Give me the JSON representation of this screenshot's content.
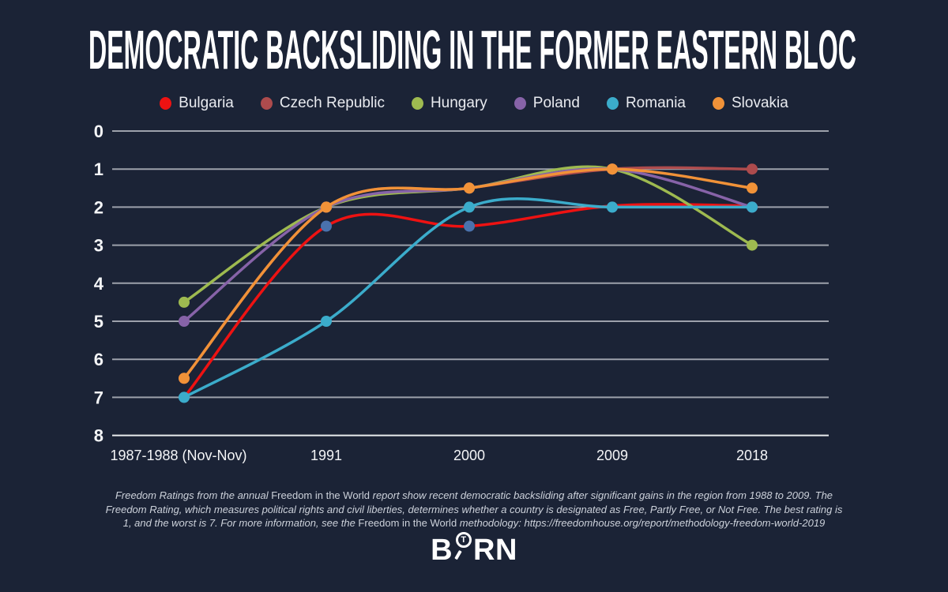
{
  "title": "DEMOCRATIC BACKSLIDING IN THE FORMER EASTERN BLOC",
  "colors": {
    "background": "#1b2336",
    "grid": "#9da1ab",
    "axis_bottom": "#e9ebee",
    "tick_text": "#f4f5f7",
    "legend_text": "#e9ebf0",
    "footer_text": "#ccd1da",
    "title_text": "#ffffff"
  },
  "chart_data": {
    "type": "line",
    "x_categories": [
      "1987-1988 (Nov-Nov)",
      "1991",
      "2000",
      "2009",
      "2018"
    ],
    "y_ticks": [
      0,
      1,
      2,
      3,
      4,
      5,
      6,
      7,
      8
    ],
    "y_axis_inverted": true,
    "y_range_note": "Freedom Rating: 1 best, 7 worst; axis shown 0 (top) to 8 (bottom)",
    "grid": "horizontal",
    "legend_position": "top",
    "series": [
      {
        "name": "Bulgaria",
        "color": "#ee1212",
        "marker_color": "#4a72ad",
        "values": [
          7,
          2.5,
          2.5,
          2,
          2
        ]
      },
      {
        "name": "Czech Republic",
        "color": "#ad4b4d",
        "values": [
          6.5,
          2,
          1.5,
          1,
          1
        ]
      },
      {
        "name": "Hungary",
        "color": "#9eba50",
        "values": [
          4.5,
          2,
          1.5,
          1,
          3
        ]
      },
      {
        "name": "Poland",
        "color": "#8763a8",
        "values": [
          5,
          2,
          1.5,
          1,
          2
        ]
      },
      {
        "name": "Romania",
        "color": "#3baccb",
        "values": [
          7,
          5,
          2,
          2,
          2
        ]
      },
      {
        "name": "Slovakia",
        "color": "#f19238",
        "values": [
          6.5,
          2,
          1.5,
          1,
          1.5
        ]
      }
    ]
  },
  "footer": {
    "segments": [
      {
        "text": "Freedom Ratings from the annual ",
        "italic": true
      },
      {
        "text": "Freedom in the World",
        "italic": false
      },
      {
        "text": " report show recent democratic backsliding after significant gains in the region from 1988 to 2009. The Freedom Rating, which measures political rights and civil liberties, determines whether a country is designated as Free, Partly Free, or Not Free. The best rating is 1, and the worst is 7. For more information, see the ",
        "italic": true
      },
      {
        "text": "Freedom in the World",
        "italic": false
      },
      {
        "text": " methodology: https://freedomhouse.org/report/methodology-freedom-world-2019",
        "italic": true
      }
    ]
  },
  "logo": {
    "left": "B",
    "magnifier_letter": "T",
    "right": "RN"
  }
}
